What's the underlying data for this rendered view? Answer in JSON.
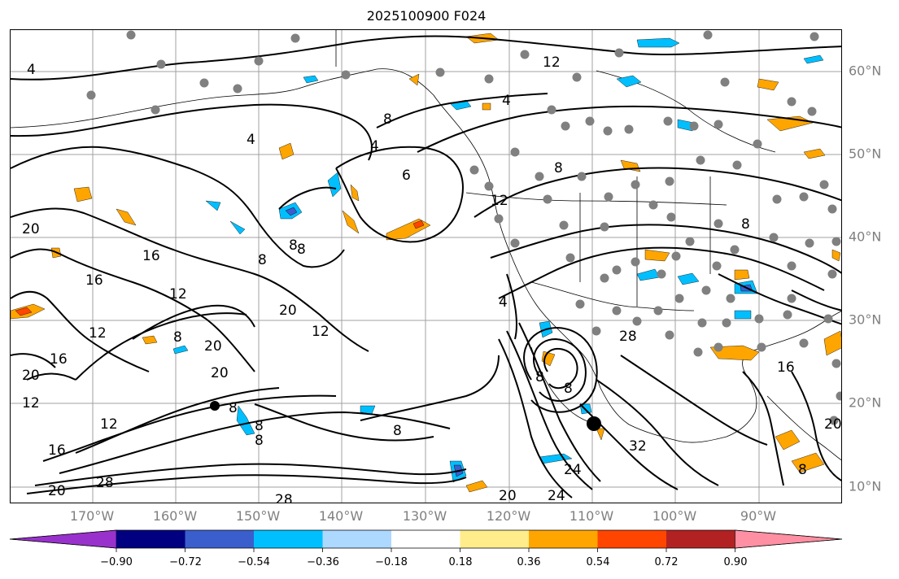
{
  "title": "2025100900 F024",
  "map": {
    "lon_labels": [
      "170°W",
      "160°W",
      "150°W",
      "140°W",
      "130°W",
      "120°W",
      "110°W",
      "100°W",
      "90°W"
    ],
    "lat_labels": [
      "60°N",
      "50°N",
      "40°N",
      "30°N",
      "20°N",
      "10°N"
    ],
    "contour_labels": [
      {
        "text": "4",
        "region": "north-pacific-west"
      },
      {
        "text": "12",
        "region": "canada-north"
      },
      {
        "text": "4",
        "region": "bc-coast"
      },
      {
        "text": "4",
        "region": "gulf-of-alaska"
      },
      {
        "text": "8",
        "region": "gulf-of-alaska"
      },
      {
        "text": "4",
        "region": "gulf-of-alaska-south"
      },
      {
        "text": "8",
        "region": "pacific-northwest"
      },
      {
        "text": "12",
        "region": "pacific-northwest-coast"
      },
      {
        "text": "8",
        "region": "central-us"
      },
      {
        "text": "20",
        "region": "west-pacific"
      },
      {
        "text": "16",
        "region": "west-pacific"
      },
      {
        "text": "16",
        "region": "central-pacific"
      },
      {
        "text": "12",
        "region": "central-pacific"
      },
      {
        "text": "8",
        "region": "northeast-pacific"
      },
      {
        "text": "8",
        "region": "northeast-pacific"
      },
      {
        "text": "20",
        "region": "central-pacific"
      },
      {
        "text": "12",
        "region": "central-pacific"
      },
      {
        "text": "4",
        "region": "baja-coast"
      },
      {
        "text": "20",
        "region": "west-pacific"
      },
      {
        "text": "12",
        "region": "west-pacific"
      },
      {
        "text": "8",
        "region": "central-pacific"
      },
      {
        "text": "20",
        "region": "central-pacific"
      },
      {
        "text": "20",
        "region": "central-pacific"
      },
      {
        "text": "16",
        "region": "west-pacific"
      },
      {
        "text": "12",
        "region": "west-pacific"
      },
      {
        "text": "12",
        "region": "west-pacific"
      },
      {
        "text": "16",
        "region": "west-pacific"
      },
      {
        "text": "20",
        "region": "west-pacific"
      },
      {
        "text": "28",
        "region": "southwest-pacific"
      },
      {
        "text": "28",
        "region": "south-pacific"
      },
      {
        "text": "24",
        "region": "south-pacific"
      },
      {
        "text": "20",
        "region": "south-pacific"
      },
      {
        "text": "24",
        "region": "mexico-coast"
      },
      {
        "text": "32",
        "region": "mexico"
      },
      {
        "text": "28",
        "region": "mexico"
      },
      {
        "text": "8",
        "region": "hurricane"
      },
      {
        "text": "8",
        "region": "hurricane"
      },
      {
        "text": "16",
        "region": "gulf-of-mexico"
      },
      {
        "text": "20",
        "region": "caribbean"
      },
      {
        "text": "8",
        "region": "caribbean"
      },
      {
        "text": "8",
        "region": "hawaii-north"
      },
      {
        "text": "8",
        "region": "hawaii"
      },
      {
        "text": "6",
        "region": "gulf-of-alaska"
      },
      {
        "text": "8",
        "region": "central-pacific"
      },
      {
        "text": "8",
        "region": "north-pacific"
      },
      {
        "text": "8",
        "region": "central-pacific"
      }
    ]
  },
  "colorbar": {
    "colors": [
      "#9932cc",
      "#000080",
      "#3a5fcd",
      "#00bfff",
      "#add8ff",
      "#ffffff",
      "#ffec8b",
      "#ffa500",
      "#ff4500",
      "#b22222",
      "#ff8fa3"
    ],
    "tick_labels": [
      "−0.90",
      "−0.72",
      "−0.54",
      "−0.36",
      "−0.18",
      "0.18",
      "0.36",
      "0.54",
      "0.72",
      "0.90"
    ]
  }
}
